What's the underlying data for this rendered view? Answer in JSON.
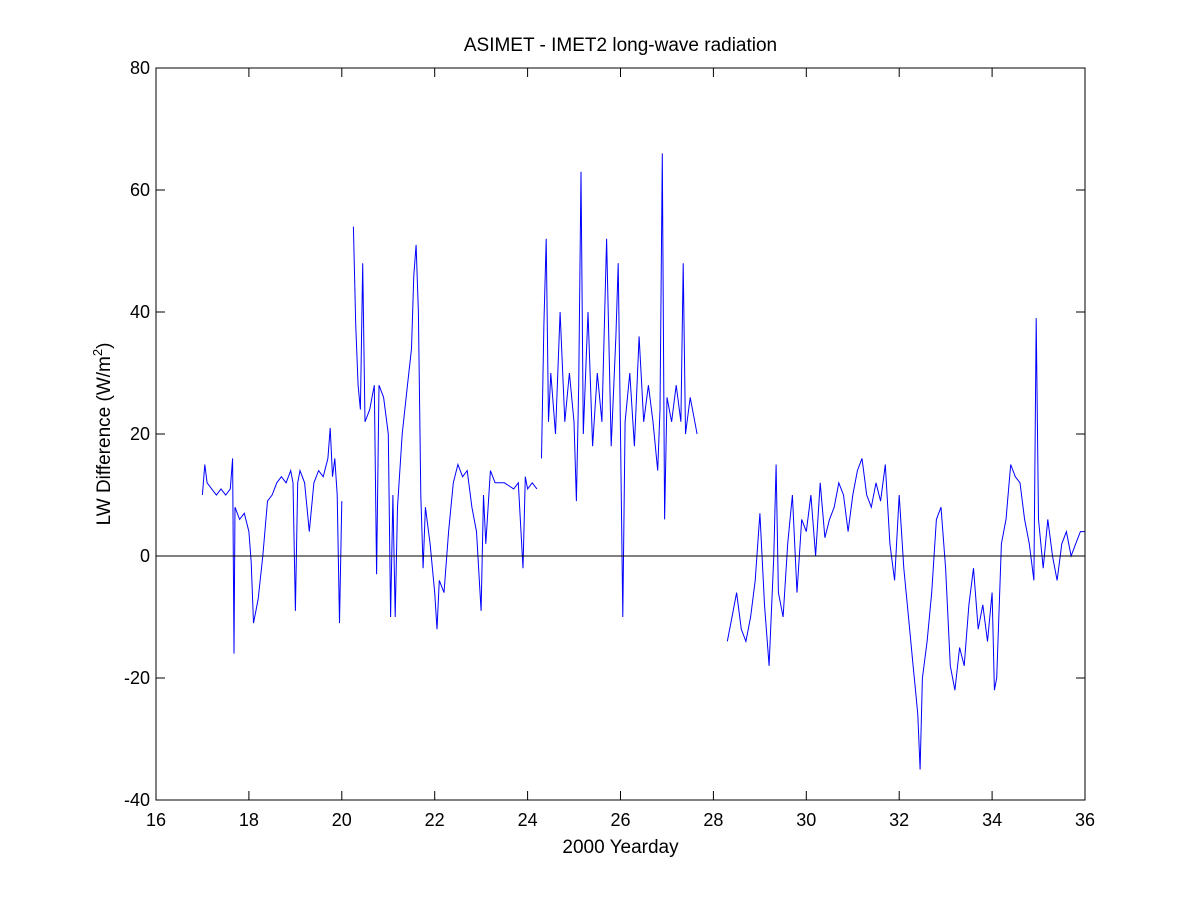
{
  "chart_data": {
    "type": "line",
    "title": "ASIMET - IMET2 long-wave radiation",
    "xlabel": "2000 Yearday",
    "ylabel_main": "LW Difference (W/m",
    "ylabel_sup": "2",
    "ylabel_close": ")",
    "xlim": [
      16,
      36
    ],
    "ylim": [
      -40,
      80
    ],
    "xticks": [
      16,
      18,
      20,
      22,
      24,
      26,
      28,
      30,
      32,
      34,
      36
    ],
    "yticks": [
      -40,
      -20,
      0,
      20,
      40,
      60,
      80
    ],
    "grid": false,
    "zero_line": true,
    "series": [
      {
        "color": "#0000ff",
        "segments": [
          [
            [
              17.0,
              10
            ],
            [
              17.05,
              15
            ],
            [
              17.1,
              12
            ],
            [
              17.2,
              11
            ],
            [
              17.3,
              10
            ],
            [
              17.4,
              11
            ],
            [
              17.5,
              10
            ],
            [
              17.6,
              11
            ],
            [
              17.65,
              16
            ],
            [
              17.68,
              -16
            ],
            [
              17.7,
              8
            ],
            [
              17.8,
              6
            ],
            [
              17.9,
              7
            ],
            [
              18.0,
              4
            ],
            [
              18.05,
              -1
            ],
            [
              18.1,
              -11
            ],
            [
              18.15,
              -9
            ],
            [
              18.2,
              -7
            ],
            [
              18.3,
              0
            ],
            [
              18.4,
              9
            ],
            [
              18.5,
              10
            ],
            [
              18.6,
              12
            ],
            [
              18.7,
              13
            ],
            [
              18.8,
              12
            ],
            [
              18.9,
              14
            ],
            [
              18.95,
              12
            ],
            [
              19.0,
              -9
            ],
            [
              19.05,
              12
            ],
            [
              19.1,
              14
            ],
            [
              19.2,
              12
            ],
            [
              19.3,
              4
            ],
            [
              19.35,
              8
            ],
            [
              19.4,
              12
            ],
            [
              19.5,
              14
            ],
            [
              19.6,
              13
            ],
            [
              19.7,
              16
            ],
            [
              19.75,
              21
            ],
            [
              19.8,
              13
            ],
            [
              19.85,
              16
            ],
            [
              19.9,
              10
            ],
            [
              19.95,
              -11
            ],
            [
              20.0,
              9
            ]
          ],
          [
            [
              20.25,
              54
            ],
            [
              20.3,
              38
            ],
            [
              20.35,
              28
            ],
            [
              20.4,
              24
            ],
            [
              20.45,
              48
            ],
            [
              20.5,
              22
            ],
            [
              20.6,
              24
            ],
            [
              20.7,
              28
            ],
            [
              20.75,
              -3
            ],
            [
              20.8,
              28
            ],
            [
              20.9,
              26
            ],
            [
              21.0,
              20
            ],
            [
              21.05,
              -10
            ],
            [
              21.1,
              10
            ],
            [
              21.15,
              -10
            ],
            [
              21.2,
              8
            ],
            [
              21.3,
              20
            ],
            [
              21.4,
              27
            ],
            [
              21.5,
              34
            ],
            [
              21.55,
              46
            ],
            [
              21.6,
              51
            ],
            [
              21.65,
              40
            ],
            [
              21.7,
              10
            ],
            [
              21.75,
              -2
            ],
            [
              21.8,
              8
            ],
            [
              21.9,
              2
            ],
            [
              22.0,
              -6
            ],
            [
              22.05,
              -12
            ],
            [
              22.1,
              -4
            ],
            [
              22.2,
              -6
            ],
            [
              22.3,
              4
            ],
            [
              22.4,
              12
            ],
            [
              22.5,
              15
            ],
            [
              22.6,
              13
            ],
            [
              22.7,
              14
            ],
            [
              22.8,
              8
            ],
            [
              22.9,
              4
            ],
            [
              23.0,
              -9
            ],
            [
              23.05,
              10
            ],
            [
              23.1,
              2
            ],
            [
              23.2,
              14
            ],
            [
              23.3,
              12
            ],
            [
              23.5,
              12
            ],
            [
              23.7,
              11
            ],
            [
              23.8,
              12
            ],
            [
              23.9,
              -2
            ],
            [
              23.95,
              13
            ],
            [
              24.0,
              11
            ],
            [
              24.1,
              12
            ],
            [
              24.2,
              11
            ]
          ],
          [
            [
              24.3,
              16
            ],
            [
              24.35,
              38
            ],
            [
              24.4,
              52
            ],
            [
              24.45,
              22
            ],
            [
              24.5,
              30
            ],
            [
              24.6,
              20
            ],
            [
              24.7,
              40
            ],
            [
              24.8,
              22
            ],
            [
              24.9,
              30
            ],
            [
              25.0,
              22
            ],
            [
              25.05,
              9
            ],
            [
              25.1,
              28
            ],
            [
              25.15,
              63
            ],
            [
              25.2,
              20
            ],
            [
              25.3,
              40
            ],
            [
              25.4,
              18
            ],
            [
              25.5,
              30
            ],
            [
              25.6,
              22
            ],
            [
              25.7,
              52
            ],
            [
              25.8,
              18
            ],
            [
              25.9,
              36
            ],
            [
              25.95,
              48
            ],
            [
              26.0,
              20
            ],
            [
              26.05,
              -10
            ],
            [
              26.1,
              22
            ],
            [
              26.2,
              30
            ],
            [
              26.3,
              18
            ],
            [
              26.4,
              36
            ],
            [
              26.5,
              22
            ],
            [
              26.6,
              28
            ],
            [
              26.7,
              22
            ],
            [
              26.8,
              14
            ],
            [
              26.85,
              24
            ],
            [
              26.9,
              66
            ],
            [
              26.95,
              6
            ],
            [
              27.0,
              26
            ],
            [
              27.1,
              22
            ],
            [
              27.2,
              28
            ],
            [
              27.3,
              22
            ],
            [
              27.35,
              48
            ],
            [
              27.4,
              20
            ],
            [
              27.5,
              26
            ],
            [
              27.6,
              22
            ],
            [
              27.65,
              20
            ]
          ],
          [
            [
              28.3,
              -14
            ],
            [
              28.4,
              -10
            ],
            [
              28.5,
              -6
            ],
            [
              28.6,
              -12
            ],
            [
              28.7,
              -14
            ],
            [
              28.8,
              -10
            ],
            [
              28.9,
              -4
            ],
            [
              29.0,
              7
            ],
            [
              29.1,
              -8
            ],
            [
              29.2,
              -18
            ],
            [
              29.3,
              0
            ],
            [
              29.35,
              15
            ],
            [
              29.4,
              -6
            ],
            [
              29.5,
              -10
            ],
            [
              29.6,
              2
            ],
            [
              29.7,
              10
            ],
            [
              29.8,
              -6
            ],
            [
              29.9,
              6
            ],
            [
              30.0,
              4
            ],
            [
              30.1,
              10
            ],
            [
              30.2,
              0
            ],
            [
              30.3,
              12
            ],
            [
              30.4,
              3
            ],
            [
              30.5,
              6
            ],
            [
              30.6,
              8
            ],
            [
              30.7,
              12
            ],
            [
              30.8,
              10
            ],
            [
              30.9,
              4
            ],
            [
              31.0,
              10
            ],
            [
              31.1,
              14
            ],
            [
              31.2,
              16
            ],
            [
              31.3,
              10
            ],
            [
              31.4,
              8
            ],
            [
              31.5,
              12
            ],
            [
              31.6,
              9
            ],
            [
              31.7,
              15
            ],
            [
              31.8,
              2
            ],
            [
              31.9,
              -4
            ],
            [
              32.0,
              10
            ],
            [
              32.1,
              -2
            ],
            [
              32.2,
              -10
            ],
            [
              32.3,
              -18
            ],
            [
              32.35,
              -22
            ],
            [
              32.4,
              -26
            ],
            [
              32.45,
              -35
            ],
            [
              32.5,
              -20
            ],
            [
              32.6,
              -14
            ],
            [
              32.7,
              -6
            ],
            [
              32.8,
              6
            ],
            [
              32.9,
              8
            ],
            [
              33.0,
              -2
            ],
            [
              33.1,
              -18
            ],
            [
              33.2,
              -22
            ],
            [
              33.3,
              -15
            ],
            [
              33.4,
              -18
            ],
            [
              33.5,
              -8
            ],
            [
              33.6,
              -2
            ],
            [
              33.7,
              -12
            ],
            [
              33.8,
              -8
            ],
            [
              33.9,
              -14
            ],
            [
              34.0,
              -6
            ],
            [
              34.05,
              -22
            ],
            [
              34.1,
              -20
            ],
            [
              34.2,
              2
            ],
            [
              34.3,
              6
            ],
            [
              34.4,
              15
            ],
            [
              34.5,
              13
            ],
            [
              34.6,
              12
            ],
            [
              34.7,
              6
            ],
            [
              34.8,
              2
            ],
            [
              34.9,
              -4
            ],
            [
              34.95,
              39
            ],
            [
              35.0,
              6
            ],
            [
              35.1,
              -2
            ],
            [
              35.2,
              6
            ],
            [
              35.3,
              0
            ],
            [
              35.4,
              -4
            ],
            [
              35.5,
              2
            ],
            [
              35.6,
              4
            ],
            [
              35.7,
              0
            ],
            [
              35.8,
              2
            ],
            [
              35.9,
              4
            ],
            [
              36.0,
              4
            ]
          ]
        ]
      }
    ]
  }
}
